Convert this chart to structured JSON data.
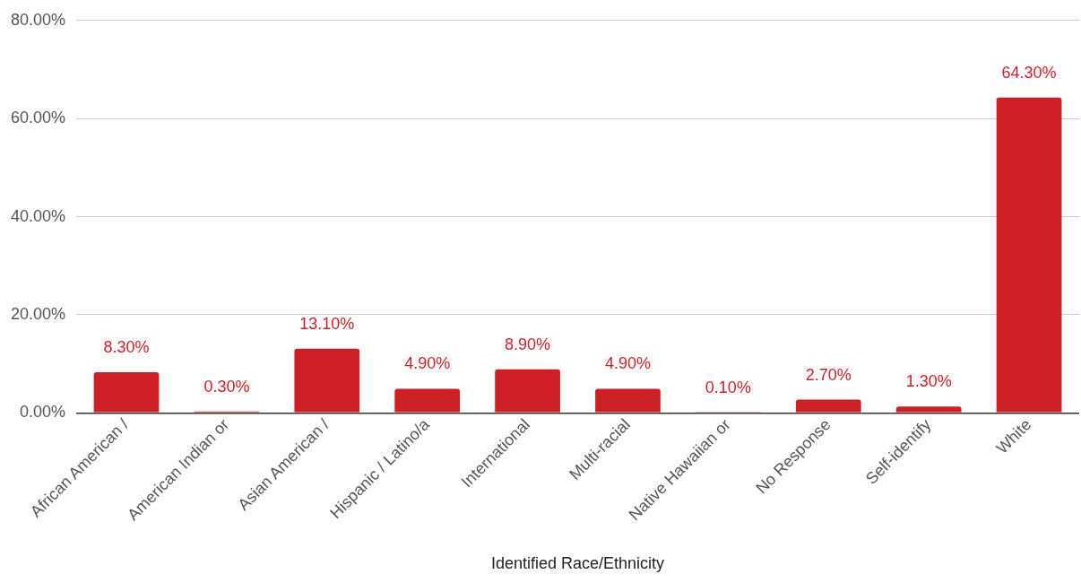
{
  "chart_data": {
    "type": "bar",
    "xlabel": "Identified Race/Ethnicity",
    "categories": [
      "African American /",
      "American Indian or",
      "Asian American /",
      "Hispanic / Latino/a",
      "International",
      "Multi-racial",
      "Native Hawaiian or",
      "No Response",
      "Self-identify",
      "White"
    ],
    "values": [
      8.3,
      0.3,
      13.1,
      4.9,
      8.9,
      4.9,
      0.1,
      2.7,
      1.3,
      64.3
    ],
    "value_labels": [
      "8.30%",
      "0.30%",
      "13.10%",
      "4.90%",
      "8.90%",
      "4.90%",
      "0.10%",
      "2.70%",
      "1.30%",
      "64.30%"
    ],
    "color": "#cf1f26",
    "ylim": [
      0,
      80
    ],
    "yticks": [
      {
        "value": 0,
        "label": "0.00%"
      },
      {
        "value": 20,
        "label": "20.00%"
      },
      {
        "value": 40,
        "label": "40.00%"
      },
      {
        "value": 60,
        "label": "60.00%"
      },
      {
        "value": 80,
        "label": "80.00%"
      }
    ],
    "grid": "y",
    "legend": false
  }
}
